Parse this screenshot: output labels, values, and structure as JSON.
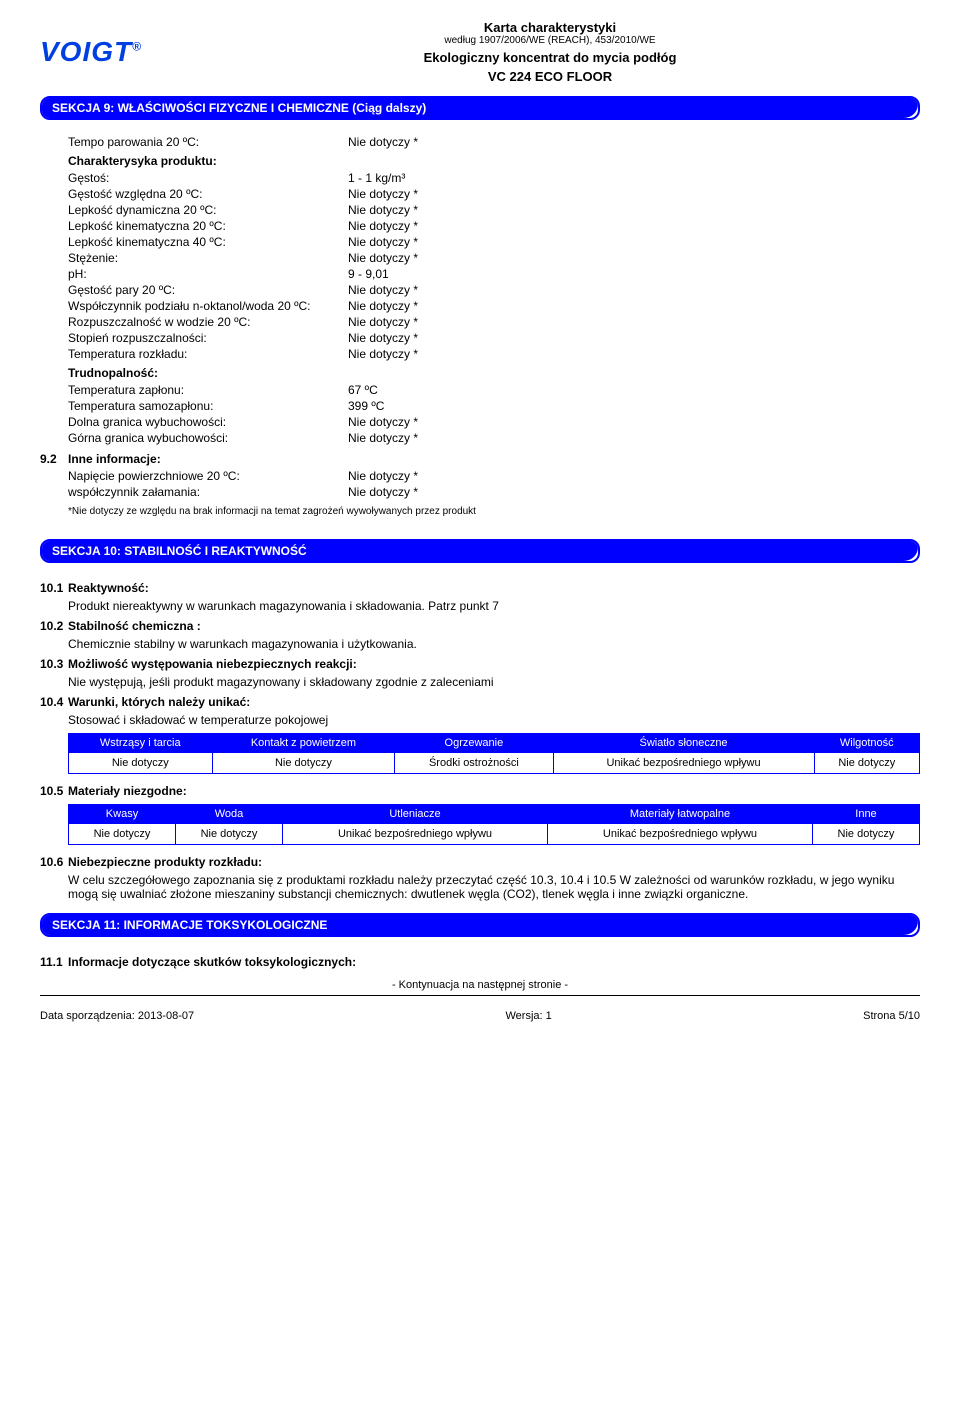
{
  "header": {
    "logo_text": "VOIGT",
    "logo_reg": "®",
    "doc_title": "Karta charakterystyki",
    "doc_sub": "według 1907/2006/WE (REACH), 453/2010/WE",
    "prod_title": "Ekologiczny koncentrat do mycia podłóg",
    "prod_code": "VC 224 ECO FLOOR"
  },
  "section9": {
    "title": "SEKCJA 9: WŁAŚCIWOŚCI FIZYCZNE I CHEMICZNE (Ciąg dalszy)",
    "row_tempo_label": "Tempo parowania 20 ºC:",
    "row_tempo_value": "Nie dotyczy *",
    "char_heading": "Charakterysyka produktu:",
    "rows": [
      {
        "label": "Gęstoś:",
        "value": "1 - 1 kg/m³"
      },
      {
        "label": "Gęstość względna 20 ºC:",
        "value": "Nie dotyczy *"
      },
      {
        "label": "Lepkość dynamiczna 20 ºC:",
        "value": "Nie dotyczy *"
      },
      {
        "label": "Lepkość kinematyczna 20 ºC:",
        "value": "Nie dotyczy *"
      },
      {
        "label": "Lepkość kinematyczna 40 ºC:",
        "value": "Nie dotyczy *"
      },
      {
        "label": "Stężenie:",
        "value": "Nie dotyczy *"
      },
      {
        "label": "pH:",
        "value": "9 - 9,01"
      },
      {
        "label": "Gęstość pary  20 ºC:",
        "value": "Nie dotyczy *"
      },
      {
        "label": "Współczynnik podziału n-oktanol/woda 20 ºC:",
        "value": "Nie dotyczy *"
      },
      {
        "label": "Rozpuszczalność w wodzie 20 ºC:",
        "value": "Nie dotyczy *"
      },
      {
        "label": "Stopień rozpuszczalności:",
        "value": "Nie dotyczy *"
      },
      {
        "label": "Temperatura rozkładu:",
        "value": "Nie dotyczy *"
      }
    ],
    "flam_heading": "Trudnopalność:",
    "flam_rows": [
      {
        "label": "Temperatura zapłonu:",
        "value": "67 ºC"
      },
      {
        "label": "Temperatura samozapłonu:",
        "value": "399 ºC"
      },
      {
        "label": "Dolna granica wybuchowości:",
        "value": "Nie dotyczy *"
      },
      {
        "label": "Górna granica wybuchowości:",
        "value": "Nie dotyczy *"
      }
    ],
    "s92_num": "9.2",
    "s92_title": "Inne informacje:",
    "s92_rows": [
      {
        "label": "Napięcie powierzchniowe 20 ºC:",
        "value": "Nie dotyczy *"
      },
      {
        "label": "współczynnik załamania:",
        "value": "Nie dotyczy *"
      }
    ],
    "note": "*Nie dotyczy ze względu na brak informacji na temat zagrożeń wywoływanych przez produkt"
  },
  "section10": {
    "title": "SEKCJA 10: STABILNOŚĆ I REAKTYWNOŚĆ",
    "s101_num": "10.1",
    "s101_title": "Reaktywność:",
    "s101_text": "Produkt niereaktywny w warunkach magazynowania i składowania. Patrz punkt 7",
    "s102_num": "10.2",
    "s102_title": "Stabilność chemiczna :",
    "s102_text": "Chemicznie stabilny w warunkach magazynowania i użytkowania.",
    "s103_num": "10.3",
    "s103_title": "Możliwość występowania niebezpiecznych reakcji:",
    "s103_text": "Nie występują, jeśli produkt magazynowany i składowany zgodnie z zaleceniami",
    "s104_num": "10.4",
    "s104_title": "Warunki, których należy unikać:",
    "s104_text": "Stosować i składować w temperaturze pokojowej",
    "table1": {
      "headers": [
        "Wstrząsy i tarcia",
        "Kontakt z powietrzem",
        "Ogrzewanie",
        "Światło słoneczne",
        "Wilgotność"
      ],
      "row": [
        "Nie dotyczy",
        "Nie dotyczy",
        "Środki ostrożności",
        "Unikać bezpośredniego wpływu",
        "Nie dotyczy"
      ]
    },
    "s105_num": "10.5",
    "s105_title": "Materiały niezgodne:",
    "table2": {
      "headers": [
        "Kwasy",
        "Woda",
        "Utleniacze",
        "Materiały łatwopalne",
        "Inne"
      ],
      "row": [
        "Nie dotyczy",
        "Nie dotyczy",
        "Unikać bezpośredniego wpływu",
        "Unikać bezpośredniego wpływu",
        "Nie dotyczy"
      ]
    },
    "s106_num": "10.6",
    "s106_title": "Niebezpieczne produkty rozkładu:",
    "s106_text": "W celu szczegółowego zapoznania się z produktami rozkładu należy przeczytać część 10.3, 10.4 i 10.5 W zależności od warunków rozkładu, w jego wyniku mogą się uwalniać złożone mieszaniny substancji chemicznych: dwutlenek węgla (CO2), tlenek węgla i inne związki organiczne."
  },
  "section11": {
    "title": "SEKCJA 11: INFORMACJE TOKSYKOLOGICZNE",
    "s111_num": "11.1",
    "s111_title": "Informacje dotyczące skutków toksykologicznych:"
  },
  "footer": {
    "cont": "- Kontynuacja na następnej stronie -",
    "left": "Data sporządzenia: 2013-08-07",
    "center": "Wersja: 1",
    "right": "Strona 5/10"
  }
}
